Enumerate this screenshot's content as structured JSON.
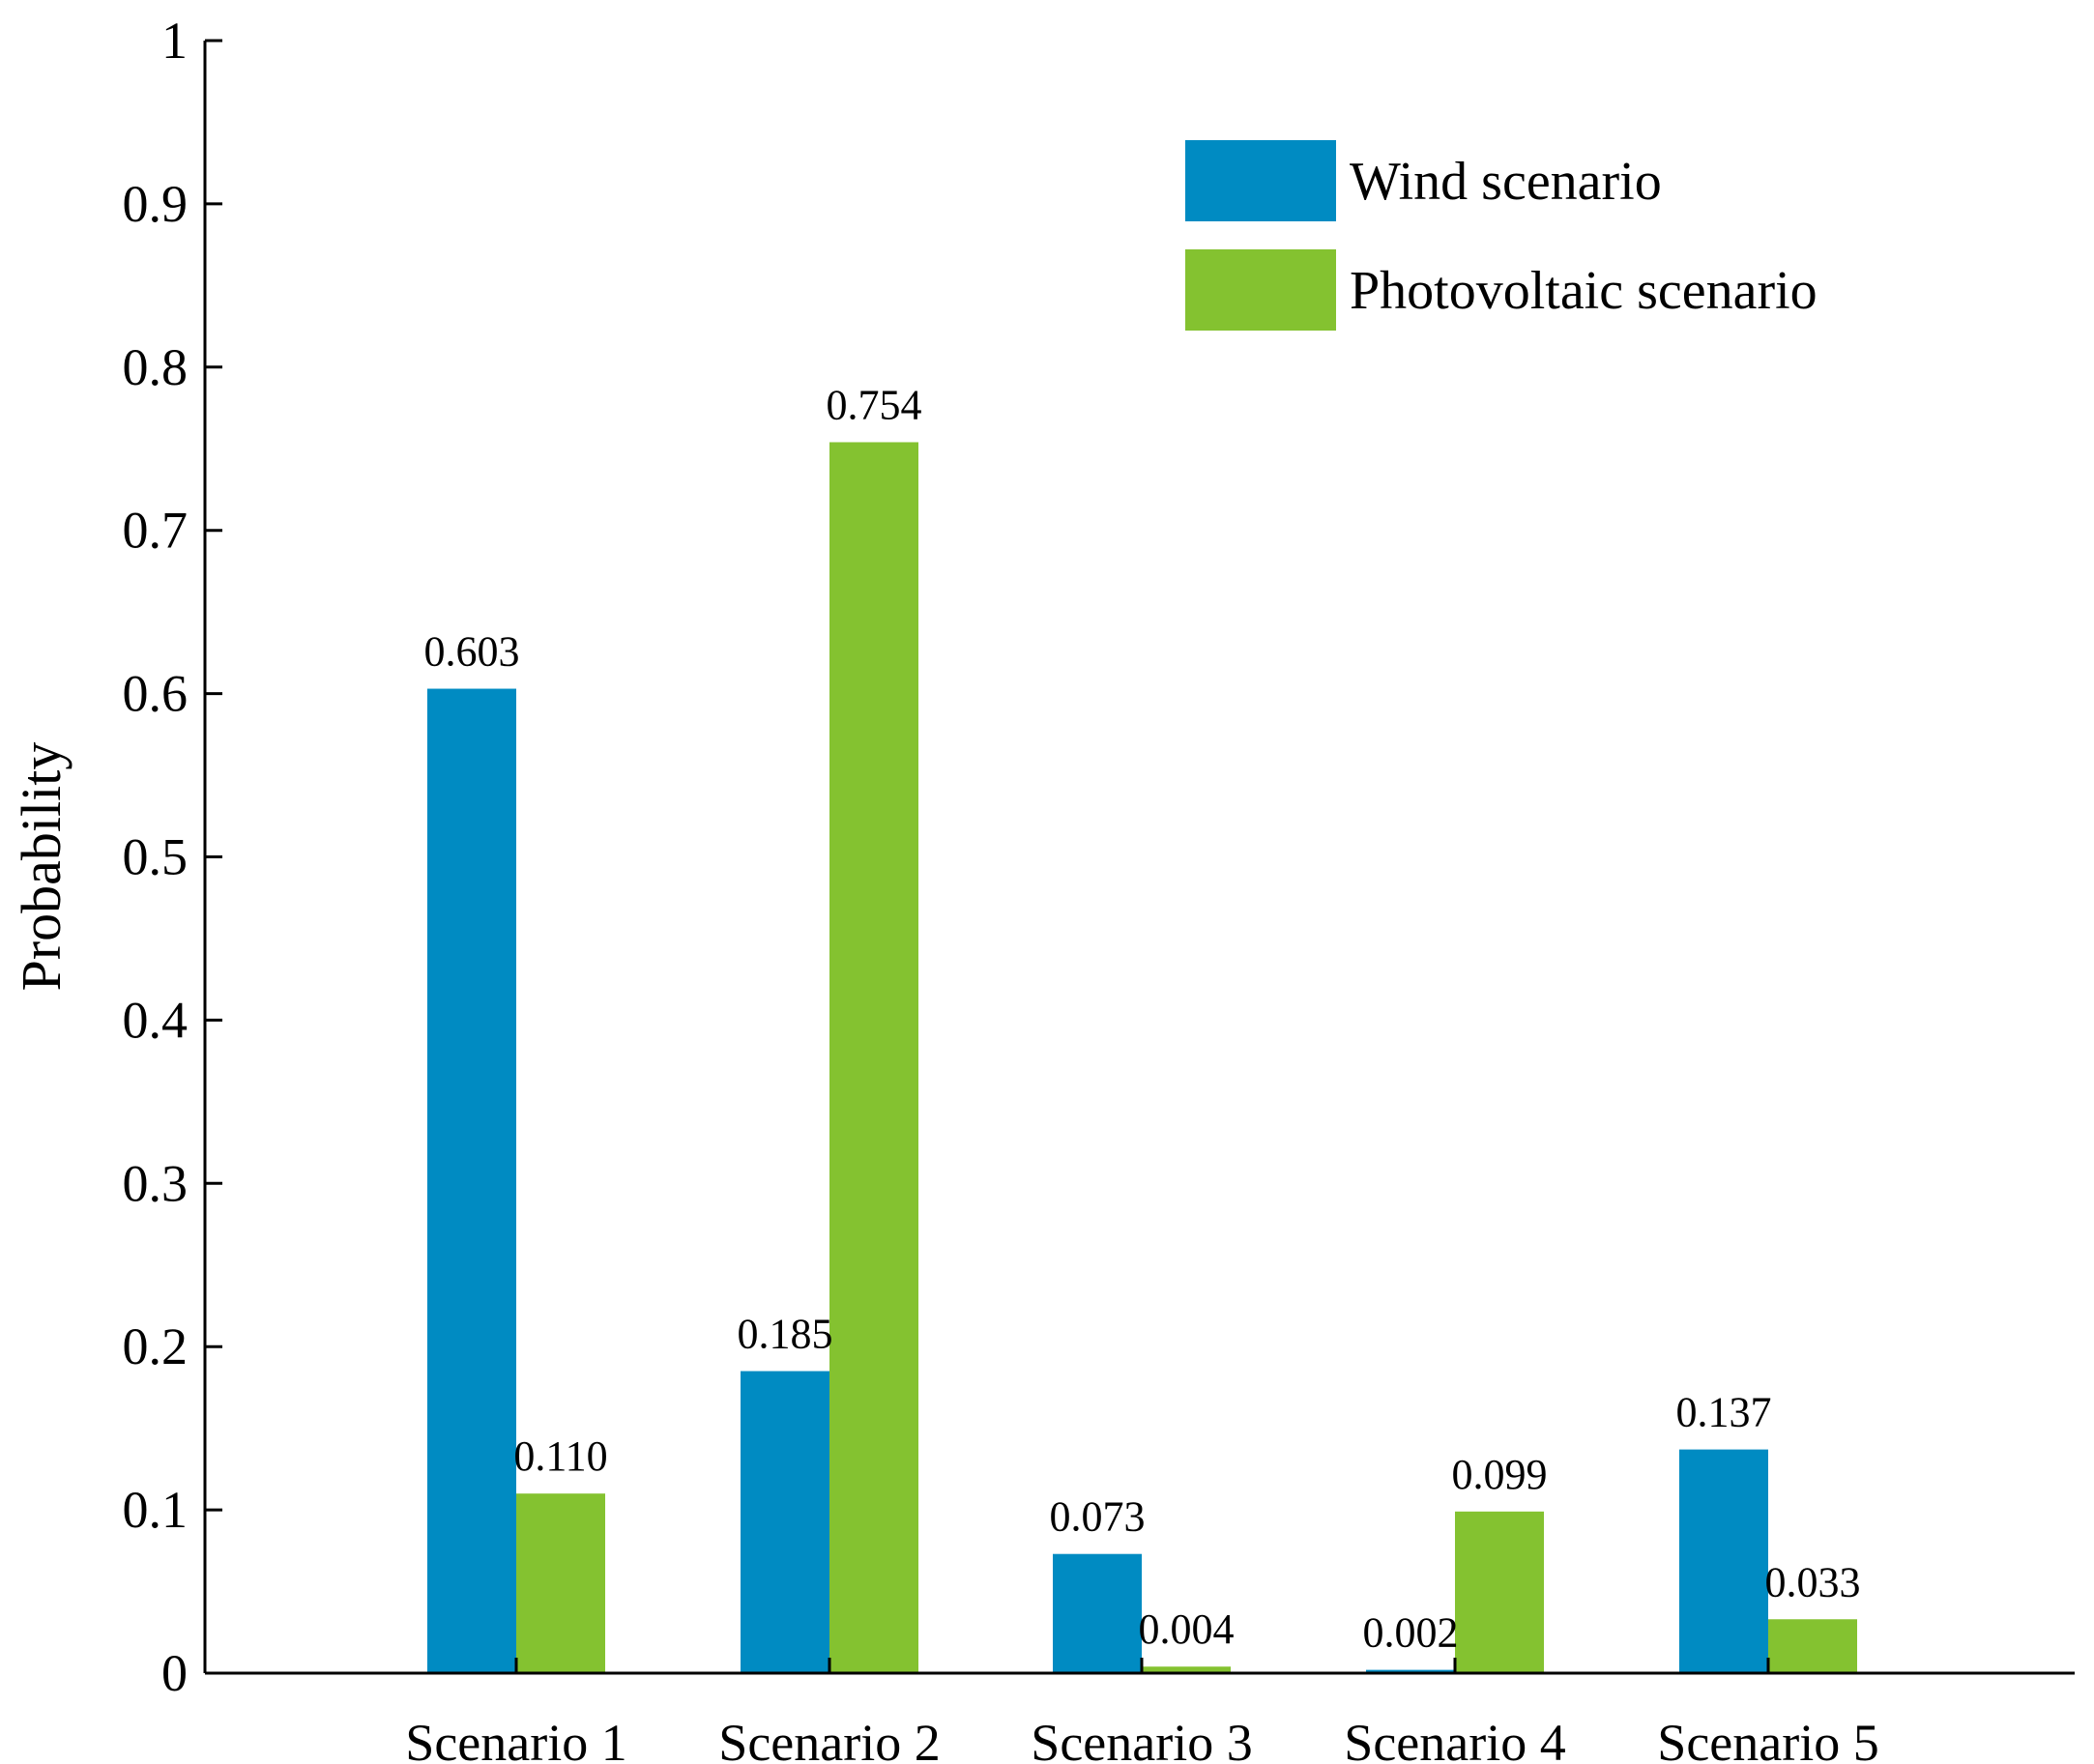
{
  "chart_data": {
    "type": "bar",
    "title": "",
    "xlabel": "",
    "ylabel": "Probability",
    "ylim": [
      0,
      1
    ],
    "yticks": [
      "0",
      "0.1",
      "0.2",
      "0.3",
      "0.4",
      "0.5",
      "0.6",
      "0.7",
      "0.8",
      "0.9",
      "1"
    ],
    "categories": [
      "Scenario 1",
      "Scenario 2",
      "Scenario 3",
      "Scenario 4",
      "Scenario 5"
    ],
    "series": [
      {
        "name": "Wind scenario",
        "color": "#008BC2",
        "values": [
          0.603,
          0.185,
          0.073,
          0.002,
          0.137
        ],
        "labels": [
          "0.603",
          "0.185",
          "0.073",
          "0.002",
          "0.137"
        ]
      },
      {
        "name": "Photovoltaic scenario",
        "color": "#84C230",
        "values": [
          0.11,
          0.754,
          0.004,
          0.099,
          0.033
        ],
        "labels": [
          "0.110",
          "0.754",
          "0.004",
          "0.099",
          "0.033"
        ]
      }
    ],
    "grid": false,
    "legend": "top-right"
  }
}
